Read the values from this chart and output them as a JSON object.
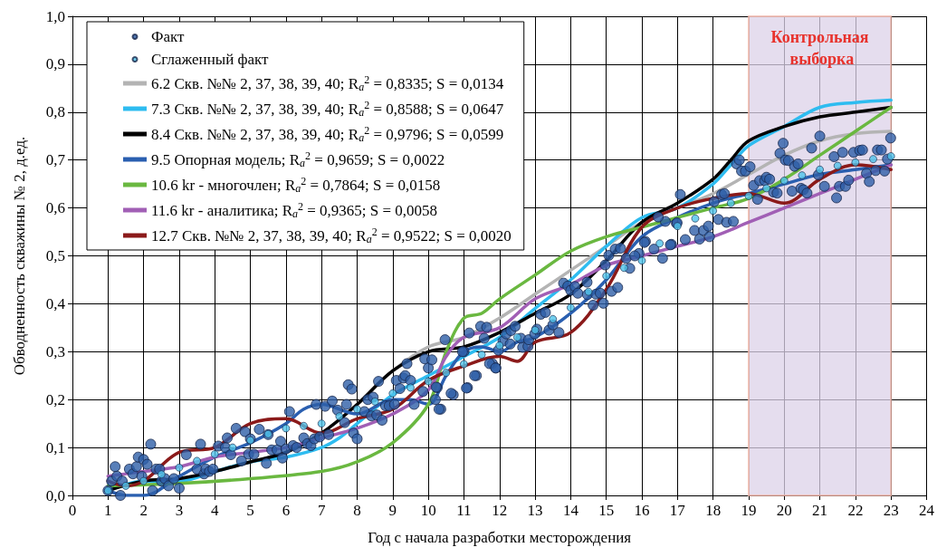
{
  "chart_data": {
    "type": "scatter",
    "xlabel": "Год с начала разработки месторождения",
    "ylabel": "Обводненность скважины № 2, д.ед.",
    "xlim": [
      0,
      24
    ],
    "xticks": [
      0,
      1,
      2,
      3,
      4,
      5,
      6,
      7,
      8,
      9,
      10,
      11,
      12,
      13,
      14,
      15,
      16,
      17,
      18,
      19,
      20,
      21,
      22,
      23,
      24
    ],
    "ylim": [
      0,
      1
    ],
    "yticks": [
      {
        "value": 0,
        "label": "0,0"
      },
      {
        "value": 0.1,
        "label": "0,1"
      },
      {
        "value": 0.2,
        "label": "0,2"
      },
      {
        "value": 0.3,
        "label": "0,3"
      },
      {
        "value": 0.4,
        "label": "0,4"
      },
      {
        "value": 0.5,
        "label": "0,5"
      },
      {
        "value": 0.6,
        "label": "0,6"
      },
      {
        "value": 0.7,
        "label": "0,7"
      },
      {
        "value": 0.8,
        "label": "0,8"
      },
      {
        "value": 0.9,
        "label": "0,9"
      },
      {
        "value": 1,
        "label": "1,0"
      }
    ],
    "grid": true,
    "legend": "top left",
    "bands": [
      {
        "axis": "x",
        "from": 19,
        "to": 23,
        "label": "Контрольная выборка",
        "color": "#dcd2e8"
      }
    ],
    "series": [
      {
        "name": "Факт",
        "marker": "circle",
        "color": "#2e5fa8",
        "x": [
          1.0,
          1.1,
          1.2,
          1.25,
          1.35,
          1.4,
          1.6,
          1.7,
          1.8,
          1.85,
          1.95,
          2.0,
          2.1,
          2.2,
          2.25,
          2.35,
          2.45,
          2.5,
          2.6,
          2.7,
          2.85,
          3.0,
          3.2,
          3.5,
          3.6,
          3.7,
          3.75,
          3.85,
          3.95,
          4.1,
          4.3,
          4.35,
          4.45,
          4.6,
          4.75,
          4.85,
          5.0,
          4.95,
          5.1,
          5.25,
          5.45,
          5.5,
          5.6,
          5.75,
          5.85,
          5.9,
          6.0,
          6.1,
          6.2,
          6.3,
          6.5,
          6.6,
          6.7,
          6.8,
          6.85,
          6.95,
          7.1,
          7.2,
          7.3,
          7.45,
          7.65,
          7.7,
          7.75,
          7.85,
          7.9,
          8.0,
          8.2,
          8.3,
          8.4,
          8.45,
          8.55,
          8.6,
          8.7,
          8.8,
          8.9,
          9.05,
          9.1,
          9.2,
          9.3,
          9.35,
          9.4,
          9.5,
          9.6,
          9.85,
          9.9,
          10.0,
          10.1,
          10.2,
          10.25,
          10.35,
          10.7,
          11.0,
          11.1,
          11.35,
          11.8,
          11.9,
          10.47,
          10.96,
          11.15,
          11.3,
          11.07,
          10.64,
          10.22,
          10.3,
          11.47,
          11.64,
          11.57,
          11.72,
          11.89,
          11.97,
          12.1,
          12.19,
          12.3,
          12.32,
          12.44,
          12.6,
          12.65,
          12.8,
          12.82,
          12.99,
          13.05,
          13.16,
          13.29,
          13.39,
          13.5,
          13.67,
          13.8,
          13.92,
          14.0,
          14.12,
          14.2,
          14.46,
          14.47,
          14.63,
          14.71,
          14.83,
          14.92,
          14.97,
          15.07,
          15.15,
          15.32,
          15.25,
          15.4,
          15.56,
          15.66,
          15.92,
          16.1,
          16.34,
          16.58,
          16.83,
          16.97,
          16.66,
          16.46,
          16.07,
          15.8,
          16.8,
          16.99,
          17.08,
          17.22,
          17.48,
          17.62,
          17.73,
          17.87,
          17.9,
          18.03,
          18.15,
          18.24,
          18.32,
          18.38,
          18.57,
          18.66,
          18.74,
          18.8,
          18.91,
          19.04,
          19.14,
          19.25,
          19.31,
          19.45,
          19.5,
          19.59,
          19.7,
          19.8,
          19.88,
          19.97,
          20.03,
          20.12,
          20.22,
          20.29,
          20.39,
          20.47,
          20.54,
          20.64,
          20.77,
          20.96,
          21.0,
          21.13,
          21.4,
          21.47,
          21.55,
          21.64,
          21.72,
          21.81,
          21.95,
          22.12,
          22.2,
          22.31,
          22.39,
          22.57,
          22.62,
          22.73,
          22.82,
          22.9,
          22.99
        ],
        "values": [
          0.01,
          0.03,
          0.06,
          0.04,
          0.0,
          0.03,
          0.055,
          0.045,
          0.06,
          0.08,
          0.04,
          0.075,
          0.065,
          0.107,
          0.01,
          0.055,
          0.055,
          0.03,
          0.035,
          0.02,
          0.035,
          0.015,
          0.085,
          0.055,
          0.107,
          0.045,
          0.055,
          0.05,
          0.055,
          0.103,
          0.1,
          0.12,
          0.085,
          0.14,
          0.072,
          0.133,
          0.118,
          0.086,
          0.086,
          0.138,
          0.067,
          0.127,
          0.095,
          0.095,
          0.113,
          0.078,
          0.097,
          0.175,
          0.104,
          0.1,
          0.12,
          0.108,
          0.104,
          0.118,
          0.19,
          0.122,
          0.186,
          0.127,
          0.197,
          0.178,
          0.152,
          0.19,
          0.231,
          0.222,
          0.13,
          0.118,
          0.175,
          0.2,
          0.166,
          0.205,
          0.168,
          0.238,
          0.157,
          0.187,
          0.187,
          0.19,
          0.24,
          0.223,
          0.245,
          0.25,
          0.275,
          0.24,
          0.19,
          0.217,
          0.285,
          0.266,
          0.283,
          0.2,
          0.225,
          0.18,
          0.21,
          0.3,
          0.225,
          0.25,
          0.275,
          0.266,
          0.325,
          0.3,
          0.339,
          0.25,
          0.224,
          0.213,
          0.226,
          0.18,
          0.353,
          0.351,
          0.328,
          0.275,
          0.266,
          0.303,
          0.322,
          0.337,
          0.316,
          0.344,
          0.353,
          0.328,
          0.309,
          0.311,
          0.325,
          0.337,
          0.347,
          0.378,
          0.382,
          0.345,
          0.356,
          0.34,
          0.443,
          0.437,
          0.428,
          0.436,
          0.422,
          0.445,
          0.419,
          0.397,
          0.42,
          0.422,
          0.401,
          0.481,
          0.501,
          0.426,
          0.434,
          0.514,
          0.516,
          0.495,
          0.474,
          0.505,
          0.53,
          0.514,
          0.495,
          0.524,
          0.568,
          0.572,
          0.581,
          0.528,
          0.5,
          0.523,
          0.569,
          0.628,
          0.534,
          0.553,
          0.535,
          0.553,
          0.562,
          0.54,
          0.613,
          0.576,
          0.628,
          0.63,
          0.57,
          0.572,
          0.692,
          0.7,
          0.677,
          0.677,
          0.686,
          0.647,
          0.618,
          0.657,
          0.657,
          0.664,
          0.66,
          0.633,
          0.631,
          0.714,
          0.735,
          0.7,
          0.699,
          0.635,
          0.687,
          0.692,
          0.641,
          0.638,
          0.631,
          0.725,
          0.669,
          0.75,
          0.645,
          0.707,
          0.621,
          0.645,
          0.716,
          0.645,
          0.658,
          0.716,
          0.72,
          0.721,
          0.672,
          0.655,
          0.678,
          0.721,
          0.721,
          0.677,
          0.702,
          0.746
        ]
      },
      {
        "name": "Сглаженный факт",
        "marker": "circle",
        "color": "#4fc3ea",
        "x": [
          1,
          1.5,
          2,
          2.5,
          3,
          3.5,
          4,
          4.5,
          5,
          5.5,
          6,
          6.5,
          7,
          7.5,
          8,
          8.5,
          9,
          9.5,
          10,
          10.5,
          11,
          11.5,
          12,
          12.5,
          13,
          13.5,
          14,
          14.5,
          15,
          15.5,
          16,
          16.5,
          17,
          17.5,
          18,
          18.5,
          19,
          19.5,
          20,
          20.5,
          21,
          21.5,
          22,
          22.5,
          23
        ],
        "values": [
          0.01,
          0.02,
          0.03,
          0.044,
          0.058,
          0.072,
          0.086,
          0.1,
          0.115,
          0.128,
          0.14,
          0.145,
          0.15,
          0.165,
          0.18,
          0.196,
          0.213,
          0.225,
          0.238,
          0.256,
          0.274,
          0.294,
          0.313,
          0.33,
          0.345,
          0.368,
          0.392,
          0.425,
          0.458,
          0.475,
          0.49,
          0.526,
          0.562,
          0.578,
          0.594,
          0.61,
          0.625,
          0.641,
          0.657,
          0.668,
          0.68,
          0.688,
          0.695,
          0.702,
          0.708
        ]
      },
      {
        "name": "6.2 Скв. №№ 2, 37, 38, 39, 40; R$_{a}$$^{2}$ = 0,8335; S = 0,0134",
        "type": "line",
        "marker": "none",
        "color": "#b4b4b4",
        "x": [
          1,
          2,
          3,
          4,
          5,
          6,
          7,
          8,
          9,
          10,
          11,
          12,
          13,
          14,
          15,
          16,
          17,
          18,
          19,
          20,
          21,
          22,
          23
        ],
        "values": [
          0.01,
          0.03,
          0.035,
          0.05,
          0.07,
          0.09,
          0.13,
          0.19,
          0.26,
          0.31,
          0.33,
          0.37,
          0.42,
          0.47,
          0.52,
          0.57,
          0.6,
          0.63,
          0.67,
          0.71,
          0.74,
          0.755,
          0.76
        ]
      },
      {
        "name": "7.3 Скв. №№ 2, 37, 38, 39, 40; R$_{a}$$^{2}$ = 0,8588; S = 0,0647",
        "type": "line",
        "marker": "none",
        "color": "#2ebcf0",
        "x": [
          1,
          2,
          3,
          4,
          5,
          6,
          7,
          7.5,
          8,
          9,
          10,
          11,
          12,
          13,
          14,
          15,
          16,
          17,
          18,
          18.5,
          19,
          20,
          21,
          22,
          23
        ],
        "values": [
          0.01,
          0.03,
          0.03,
          0.05,
          0.07,
          0.08,
          0.1,
          0.12,
          0.15,
          0.21,
          0.25,
          0.29,
          0.33,
          0.39,
          0.45,
          0.52,
          0.58,
          0.6,
          0.65,
          0.69,
          0.73,
          0.77,
          0.81,
          0.82,
          0.825
        ]
      },
      {
        "name": "8.4 Скв. №№ 2, 37, 38, 39, 40; R$_{a}$$^{2}$ = 0,9796; S = 0,0599",
        "type": "line",
        "marker": "none",
        "color": "#000000",
        "x": [
          1,
          2,
          3,
          4,
          5,
          6,
          7,
          8,
          9,
          10,
          11,
          12,
          13,
          14,
          15,
          16,
          17,
          18,
          18.5,
          19,
          20,
          21,
          22,
          23
        ],
        "values": [
          0.01,
          0.03,
          0.035,
          0.05,
          0.07,
          0.09,
          0.13,
          0.19,
          0.26,
          0.3,
          0.31,
          0.34,
          0.38,
          0.42,
          0.49,
          0.57,
          0.61,
          0.66,
          0.7,
          0.74,
          0.77,
          0.79,
          0.8,
          0.81
        ]
      },
      {
        "name": "9.5 Опорная модель; R$_{a}$$^{2}$ = 0,9659; S = 0,0022",
        "type": "line",
        "marker": "none",
        "color": "#2a5fb0",
        "x": [
          1,
          1.5,
          2,
          3,
          4,
          5,
          6,
          6.5,
          7,
          8,
          9,
          9.5,
          10,
          10.5,
          11,
          11.5,
          12,
          12.5,
          13,
          14,
          15,
          16,
          17,
          18,
          19,
          20,
          21,
          22,
          23
        ],
        "values": [
          0.01,
          0.0,
          0.0,
          0.04,
          0.08,
          0.11,
          0.15,
          0.18,
          0.19,
          0.17,
          0.2,
          0.2,
          0.19,
          0.25,
          0.3,
          0.31,
          0.3,
          0.32,
          0.33,
          0.38,
          0.45,
          0.54,
          0.58,
          0.61,
          0.63,
          0.65,
          0.67,
          0.68,
          0.69
        ]
      },
      {
        "name": "10.6 kr - многочлен; R$_{a}$$^{2}$ = 0,7864; S = 0,0158",
        "type": "line",
        "marker": "none",
        "color": "#6ab840",
        "x": [
          1,
          3,
          5,
          7,
          8,
          9,
          10,
          10.5,
          11,
          11.5,
          12,
          13,
          14,
          15,
          16,
          17,
          18,
          19,
          20,
          21,
          22,
          23
        ],
        "values": [
          0.02,
          0.025,
          0.035,
          0.05,
          0.07,
          0.11,
          0.19,
          0.3,
          0.37,
          0.38,
          0.41,
          0.46,
          0.51,
          0.54,
          0.56,
          0.58,
          0.6,
          0.62,
          0.66,
          0.71,
          0.76,
          0.81
        ]
      },
      {
        "name": "11.6 kr - аналитика; R$_{a}$$^{2}$ = 0,9365; S = 0,0058",
        "type": "line",
        "marker": "none",
        "color": "#a15fb5",
        "x": [
          1,
          2,
          3,
          4,
          5,
          6,
          7,
          8,
          9,
          10,
          10.5,
          11,
          12,
          13,
          14,
          15,
          16,
          17,
          18,
          19,
          20,
          21,
          22,
          23
        ],
        "values": [
          0.04,
          0.05,
          0.06,
          0.08,
          0.09,
          0.1,
          0.12,
          0.14,
          0.17,
          0.22,
          0.29,
          0.33,
          0.35,
          0.41,
          0.44,
          0.48,
          0.5,
          0.52,
          0.54,
          0.57,
          0.6,
          0.63,
          0.66,
          0.69
        ]
      },
      {
        "name": "12.7 Скв. №№ 2, 37, 38, 39, 40; R$_{a}$$^{2}$ = 0,9522; S = 0,0020",
        "type": "line",
        "marker": "none",
        "color": "#8b1a1a",
        "x": [
          1,
          1.5,
          2,
          3,
          4,
          5,
          6,
          7,
          8,
          9,
          10,
          11,
          12,
          12.5,
          13,
          14,
          15,
          16,
          17,
          18,
          19,
          20,
          21,
          22,
          23
        ],
        "values": [
          0.03,
          0.02,
          0.03,
          0.09,
          0.1,
          0.15,
          0.16,
          0.13,
          0.16,
          0.18,
          0.24,
          0.27,
          0.29,
          0.28,
          0.32,
          0.34,
          0.43,
          0.56,
          0.6,
          0.62,
          0.63,
          0.61,
          0.66,
          0.69,
          0.68
        ]
      }
    ]
  }
}
